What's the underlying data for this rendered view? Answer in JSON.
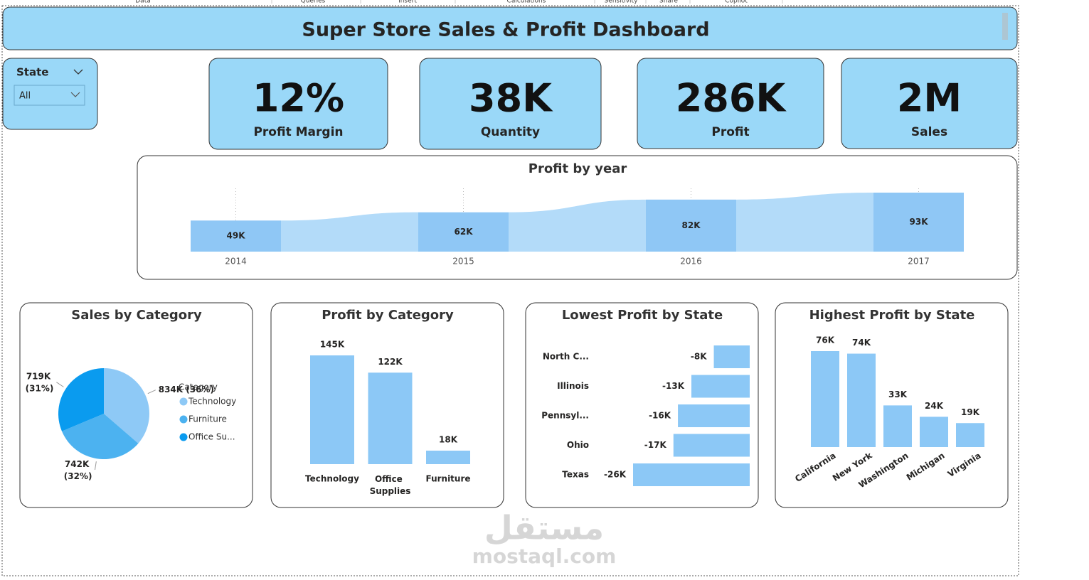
{
  "ribbon_tabs": [
    "Data",
    "Queries",
    "Insert",
    "Calculations",
    "Sensitivity",
    "Share",
    "Copilot"
  ],
  "header": {
    "title": "Super Store Sales & Profit Dashboard"
  },
  "slicer": {
    "label": "State",
    "value": "All"
  },
  "kpis": [
    {
      "value": "12%",
      "label": "Profit Margin"
    },
    {
      "value": "38K",
      "label": "Quantity"
    },
    {
      "value": "286K",
      "label": "Profit"
    },
    {
      "value": "2M",
      "label": "Sales"
    }
  ],
  "chart_data": [
    {
      "type": "ribbon",
      "title": "Profit by year",
      "categories": [
        "2014",
        "2015",
        "2016",
        "2017"
      ],
      "values": [
        49000,
        62000,
        82000,
        93000
      ],
      "value_labels": [
        "49K",
        "62K",
        "82K",
        "93K"
      ],
      "color": "#8fc7f5",
      "band_color": "#b3dbf9"
    },
    {
      "type": "pie",
      "title": "Sales by Category",
      "legend_title": "Category",
      "categories": [
        "Technology",
        "Furniture",
        "Office Su..."
      ],
      "values": [
        834000,
        742000,
        719000
      ],
      "value_labels": [
        "834K (36%)",
        "742K (32%)",
        "719K (31%)"
      ],
      "colors": [
        "#8ec9f6",
        "#4cb2f0",
        "#0a9bef"
      ]
    },
    {
      "type": "bar",
      "title": "Profit by Category",
      "categories": [
        "Technology",
        "Office Supplies",
        "Furniture"
      ],
      "values": [
        145000,
        122000,
        18000
      ],
      "value_labels": [
        "145K",
        "122K",
        "18K"
      ],
      "color": "#8cc8f6"
    },
    {
      "type": "hbar",
      "title": "Lowest Profit by State",
      "categories": [
        "North C...",
        "Illinois",
        "Pennsyl...",
        "Ohio",
        "Texas"
      ],
      "values": [
        -8000,
        -13000,
        -16000,
        -17000,
        -26000
      ],
      "value_labels": [
        "-8K",
        "-13K",
        "-16K",
        "-17K",
        "-26K"
      ],
      "color": "#8cc8f6"
    },
    {
      "type": "bar",
      "title": "Highest Profit by State",
      "categories": [
        "California",
        "New York",
        "Washington",
        "Michigan",
        "Virginia"
      ],
      "values": [
        76000,
        74000,
        33000,
        24000,
        19000
      ],
      "value_labels": [
        "76K",
        "74K",
        "33K",
        "24K",
        "19K"
      ],
      "color": "#8cc8f6"
    }
  ],
  "watermark": {
    "arabic": "مستقل",
    "latin": "mostaql.com"
  }
}
